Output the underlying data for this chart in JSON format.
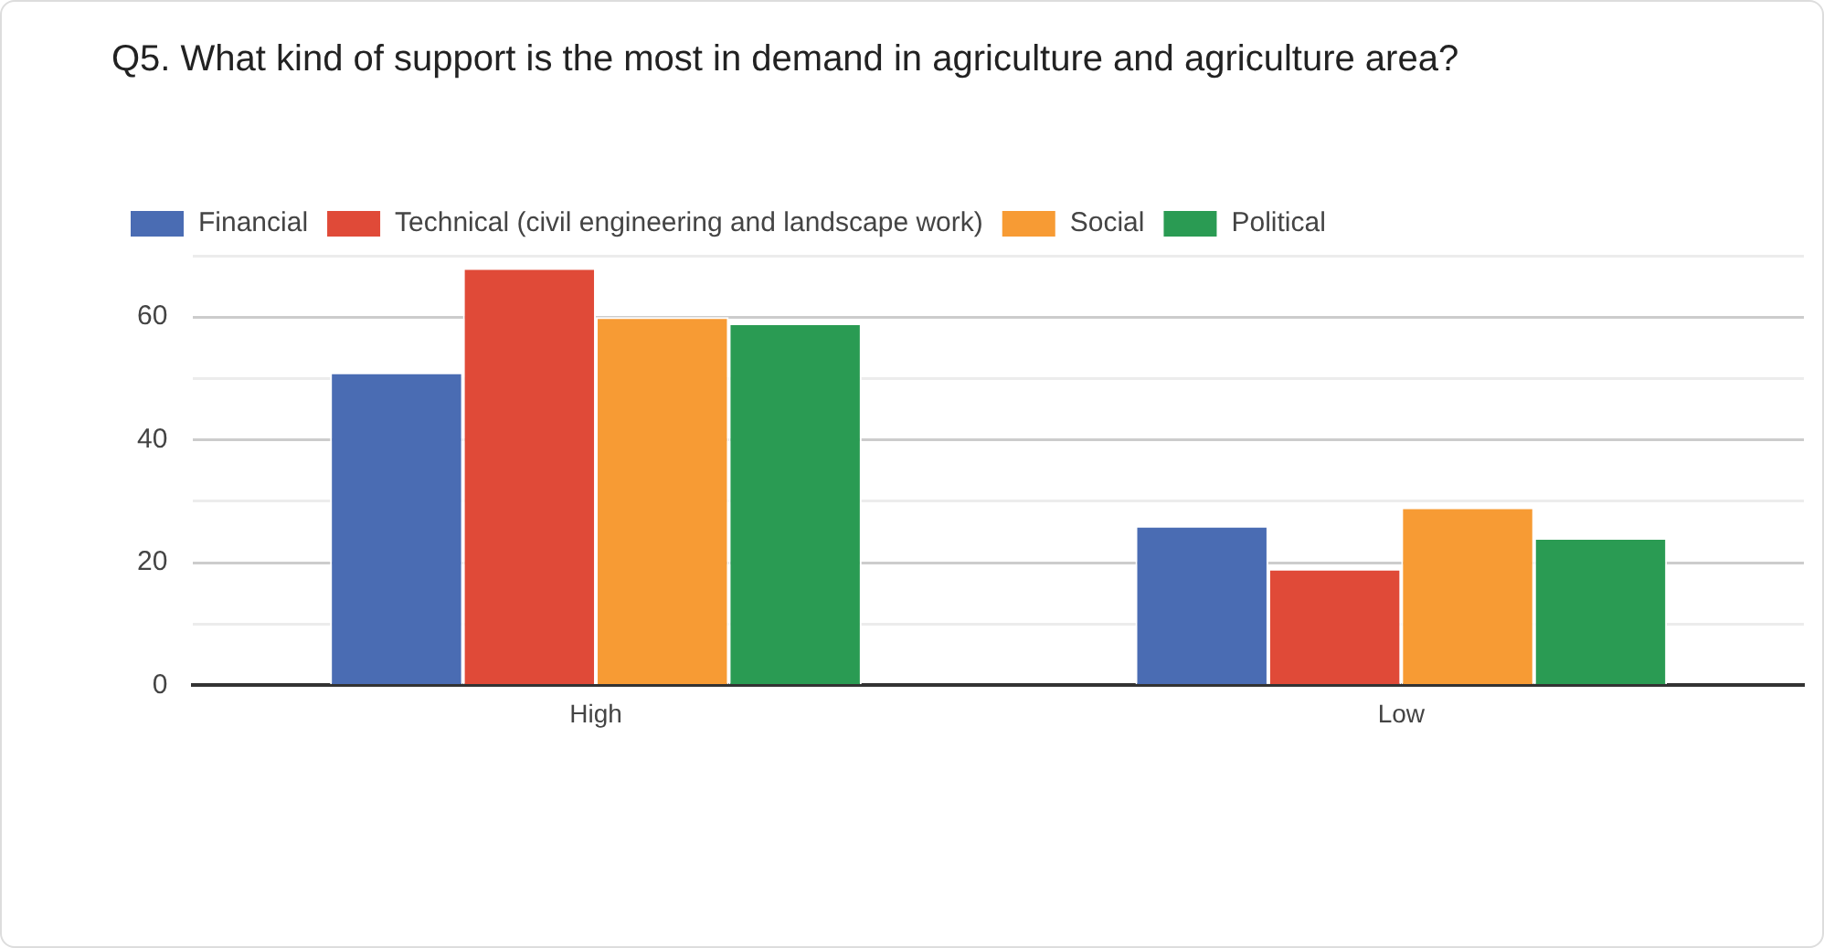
{
  "chart_data": {
    "type": "bar",
    "title": "Q5. What kind of support is the most in demand in agriculture and agriculture area?",
    "categories": [
      "High",
      "Low"
    ],
    "series": [
      {
        "name": "Financial",
        "color": "#4a6cb3",
        "values": [
          51,
          26
        ]
      },
      {
        "name": "Technical (civil engineering and landscape work)",
        "color": "#e04a38",
        "values": [
          68,
          19
        ]
      },
      {
        "name": "Social",
        "color": "#f79b34",
        "values": [
          60,
          29
        ]
      },
      {
        "name": "Political",
        "color": "#2a9b53",
        "values": [
          59,
          24
        ]
      }
    ],
    "ylim": [
      0,
      70
    ],
    "yticks": [
      0,
      {
        "value": 10,
        "label": null
      },
      20,
      {
        "value": 30,
        "label": null
      },
      40,
      {
        "value": 50,
        "label": null
      },
      60,
      {
        "value": 70,
        "label": null
      }
    ],
    "grid": "y",
    "legend": "top left"
  }
}
